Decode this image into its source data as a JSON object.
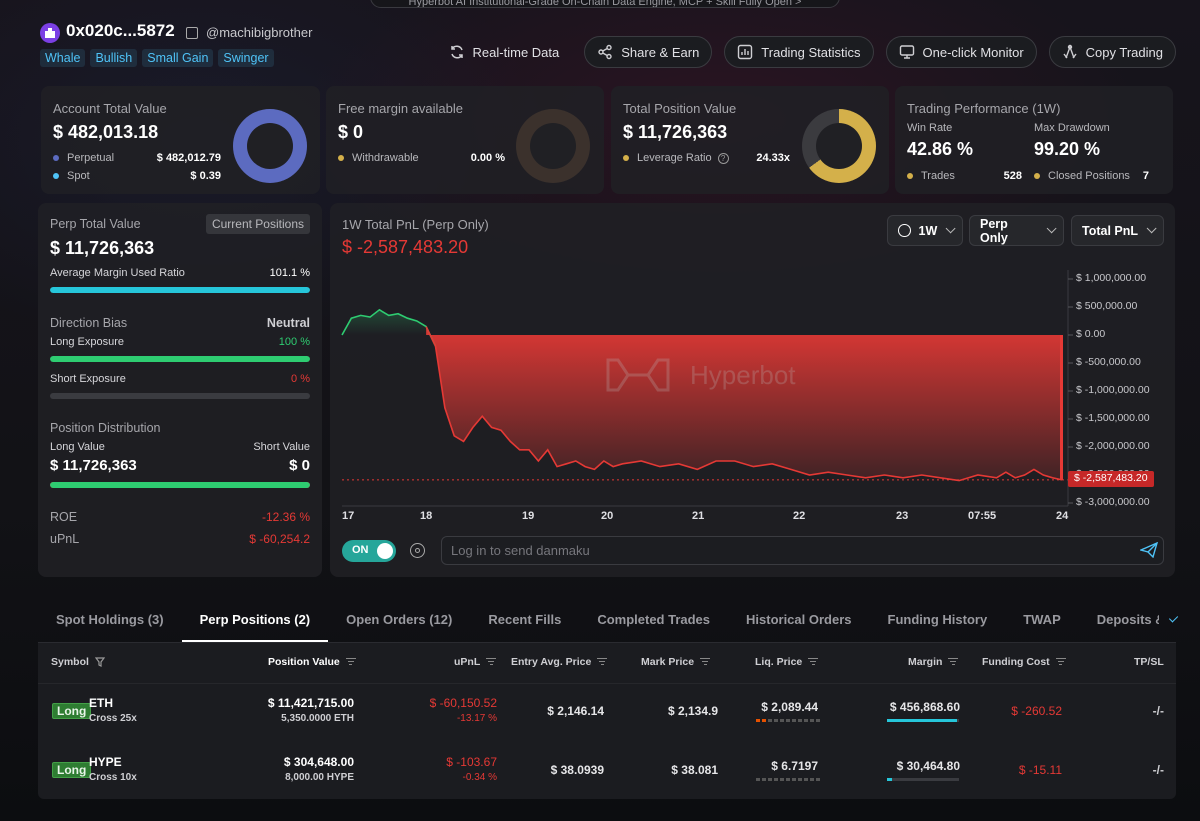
{
  "banner": "Hyperbot AI Institutional-Grade On-Chain Data Engine, MCP + Skill Fully Open  >",
  "header": {
    "address": "0x020c...5872",
    "handle": "@machibigbrother",
    "tags": [
      "Whale",
      "Bullish",
      "Small Gain",
      "Swinger"
    ],
    "buttons": {
      "realtime": "Real-time Data",
      "share": "Share & Earn",
      "stats": "Trading Statistics",
      "monitor": "One-click Monitor",
      "copy": "Copy Trading"
    }
  },
  "cards": {
    "account": {
      "title": "Account Total Value",
      "value": "$ 482,013.18",
      "rows": [
        {
          "label": "Perpetual",
          "value": "$ 482,012.79",
          "color": "#5c6bc0"
        },
        {
          "label": "Spot",
          "value": "$ 0.39",
          "color": "#4fc3f7"
        }
      ],
      "donut_fraction": 0.999
    },
    "margin": {
      "title": "Free margin available",
      "value": "$ 0",
      "rows": [
        {
          "label": "Withdrawable",
          "value": "0.00 %",
          "color": "#d4b04a"
        }
      ],
      "donut_fraction": 0.0
    },
    "position": {
      "title": "Total Position Value",
      "value": "$ 11,726,363",
      "rows": [
        {
          "label": "Leverage Ratio",
          "value": "24.33x",
          "color": "#d4b04a"
        }
      ],
      "donut_fraction": 0.65
    },
    "performance": {
      "title": "Trading Performance (1W)",
      "win_label": "Win Rate",
      "win_value": "42.86 %",
      "dd_label": "Max Drawdown",
      "dd_value": "99.20 %",
      "trades_label": "Trades",
      "trades_value": "528",
      "closed_label": "Closed Positions",
      "closed_value": "7"
    }
  },
  "left": {
    "title": "Perp Total Value",
    "current_btn": "Current Positions",
    "value": "$ 11,726,363",
    "avg_margin_label": "Average Margin Used Ratio",
    "avg_margin_value": "101.1 %",
    "avg_margin_fraction": 1.0,
    "bias_label": "Direction Bias",
    "bias_value": "Neutral",
    "long_exp_label": "Long Exposure",
    "long_exp_value": "100 %",
    "long_exp_fraction": 1.0,
    "short_exp_label": "Short Exposure",
    "short_exp_value": "0 %",
    "short_exp_fraction": 0.0,
    "dist_label": "Position Distribution",
    "long_value_label": "Long Value",
    "short_value_label": "Short Value",
    "long_value": "$ 11,726,363",
    "short_value": "$ 0",
    "dist_fraction": 1.0,
    "roe_label": "ROE",
    "roe_value": "-12.36 %",
    "upnl_label": "uPnL",
    "upnl_value": "$ -60,254.2"
  },
  "chart": {
    "title": "1W Total PnL (Perp Only)",
    "pnl": "$ -2,587,483.20",
    "selects": {
      "range": "1W",
      "scope": "Perp Only",
      "metric": "Total PnL"
    },
    "watermark": "Hyperbot",
    "current_label": "$ -2,587,483.20",
    "toggle_label": "ON",
    "danmaku_placeholder": "Log in to send danmaku"
  },
  "chart_data": {
    "type": "area",
    "title": "1W Total PnL (Perp Only)",
    "x_ticks": [
      "17",
      "18",
      "19",
      "20",
      "21",
      "22",
      "23",
      "07:55",
      "24"
    ],
    "y_ticks": [
      "$ 1,000,000.00",
      "$ 500,000.00",
      "$ 0.00",
      "$ -500,000.00",
      "$ -1,000,000.00",
      "$ -1,500,000.00",
      "$ -2,000,000.00",
      "$ -2,500,000.00",
      "$ -3,000,000.00"
    ],
    "ylim": [
      -3000000,
      1000000
    ],
    "x": [
      0,
      0.1,
      0.2,
      0.3,
      0.4,
      0.5,
      0.6,
      0.7,
      0.8,
      0.9,
      1.0,
      1.1,
      1.2,
      1.3,
      1.4,
      1.5,
      1.6,
      1.7,
      1.8,
      1.9,
      2.0,
      2.1,
      2.2,
      2.3,
      2.4,
      2.5,
      2.6,
      2.7,
      2.8,
      2.9,
      3.0,
      3.2,
      3.4,
      3.6,
      3.8,
      4.0,
      4.2,
      4.4,
      4.6,
      4.8,
      5.0,
      5.2,
      5.4,
      5.6,
      5.8,
      6.0,
      6.2,
      6.4,
      6.6,
      6.8,
      7.0,
      7.1,
      7.2,
      7.3,
      7.4,
      7.5,
      7.6,
      7.7
    ],
    "values": [
      0,
      300000,
      350000,
      320000,
      450000,
      350000,
      380000,
      300000,
      250000,
      150000,
      -200000,
      -1300000,
      -1800000,
      -1900000,
      -1650000,
      -1450000,
      -1650000,
      -1700000,
      -1900000,
      -2050000,
      -2050000,
      -2250000,
      -2050000,
      -2350000,
      -2300000,
      -2250000,
      -2350000,
      -2400000,
      -2250000,
      -2350000,
      -2300000,
      -2250000,
      -2350000,
      -2300000,
      -2400000,
      -2250000,
      -2250000,
      -2350000,
      -2300000,
      -2400000,
      -2500000,
      -2450000,
      -2500000,
      -2550000,
      -2500000,
      -2550000,
      -2500000,
      -2550000,
      -2600000,
      -2500000,
      -2550000,
      -2450000,
      -2550000,
      -2500000,
      -2400000,
      -2500000,
      -2550000,
      -2587483.2
    ],
    "series_colors": {
      "positive": "#2ecc71",
      "negative": "#e53935"
    }
  },
  "tabs": [
    "Spot Holdings (3)",
    "Perp Positions (2)",
    "Open Orders (12)",
    "Recent Fills",
    "Completed Trades",
    "Historical Orders",
    "Funding History",
    "TWAP",
    "Deposits & Withdra"
  ],
  "active_tab": 1,
  "table": {
    "headers": {
      "symbol": "Symbol",
      "position_value": "Position Value",
      "upnl": "uPnL",
      "entry": "Entry Avg. Price",
      "mark": "Mark Price",
      "liq": "Liq. Price",
      "margin": "Margin",
      "funding": "Funding Cost",
      "tpsl": "TP/SL"
    },
    "rows": [
      {
        "side": "Long",
        "symbol": "ETH",
        "cross": "Cross 25x",
        "value": "$ 11,421,715.00",
        "size": "5,350.0000 ETH",
        "upnl": "$ -60,150.52",
        "upnl_pct": "-13.17 %",
        "entry": "$ 2,146.14",
        "mark": "$ 2,134.9",
        "liq": "$ 2,089.44",
        "margin": "$ 456,868.60",
        "margin_fraction": 0.97,
        "funding": "$ -260.52",
        "tpsl": "-/-"
      },
      {
        "side": "Long",
        "symbol": "HYPE",
        "cross": "Cross 10x",
        "value": "$ 304,648.00",
        "size": "8,000.00 HYPE",
        "upnl": "$ -103.67",
        "upnl_pct": "-0.34 %",
        "entry": "$ 38.0939",
        "mark": "$ 38.081",
        "liq": "$ 6.7197",
        "margin": "$ 30,464.80",
        "margin_fraction": 0.07,
        "funding": "$ -15.11",
        "tpsl": "-/-"
      }
    ]
  }
}
